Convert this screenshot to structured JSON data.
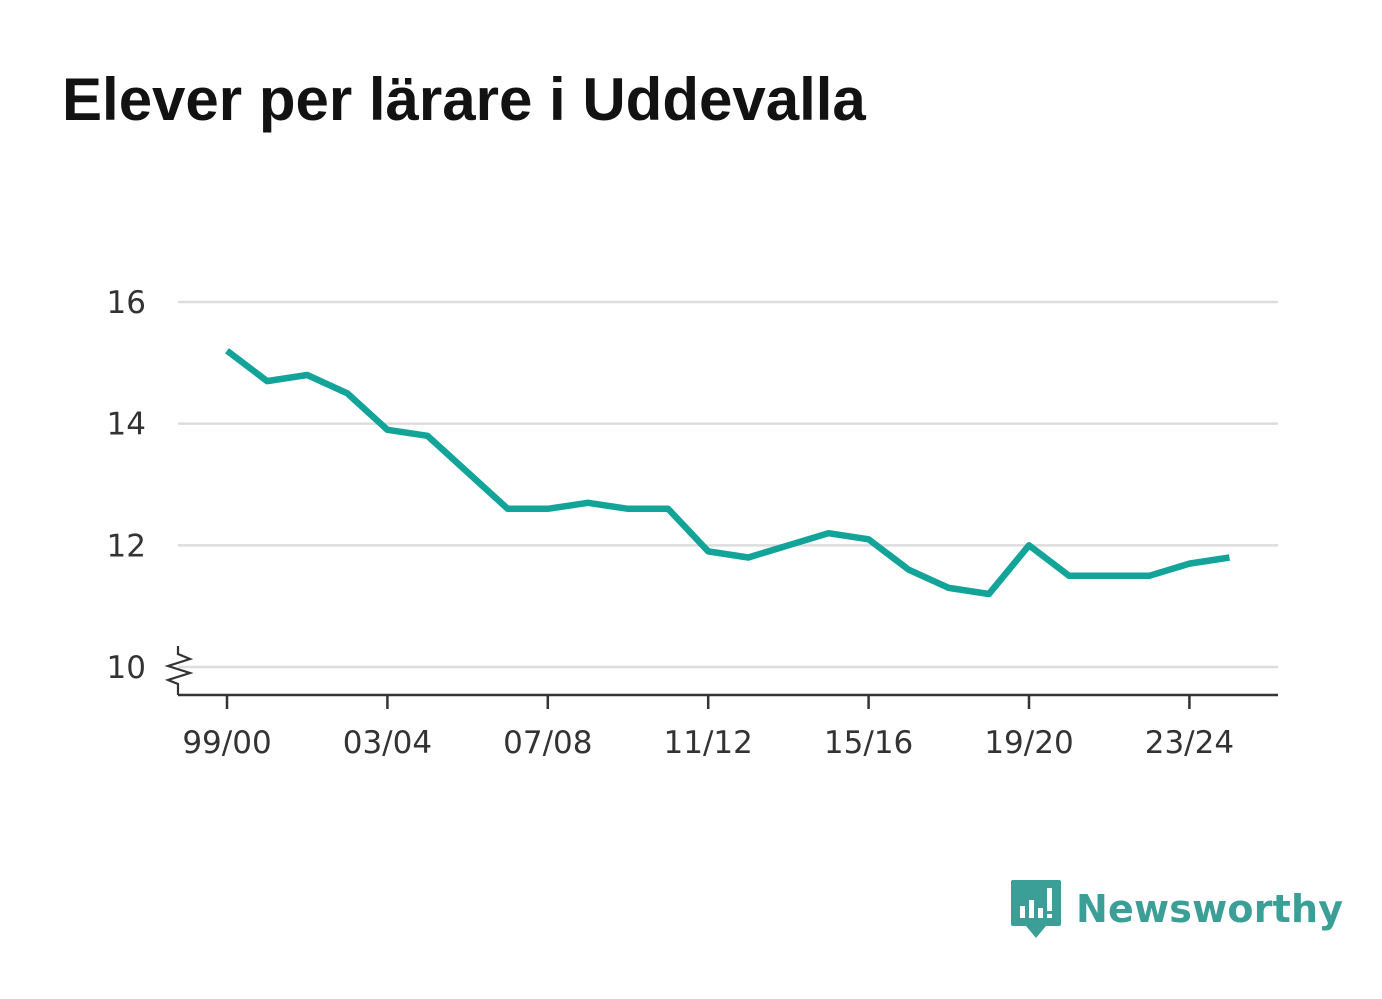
{
  "chart_data": {
    "type": "line",
    "title": "Elever per lärare i Uddevalla",
    "x": [
      "99/00",
      "00/01",
      "01/02",
      "02/03",
      "03/04",
      "04/05",
      "05/06",
      "06/07",
      "07/08",
      "08/09",
      "09/10",
      "10/11",
      "11/12",
      "12/13",
      "13/14",
      "14/15",
      "15/16",
      "16/17",
      "17/18",
      "18/19",
      "19/20",
      "20/21",
      "21/22",
      "22/23",
      "23/24",
      "24/25"
    ],
    "x_tick_labels": [
      "99/00",
      "03/04",
      "07/08",
      "11/12",
      "15/16",
      "19/20",
      "23/24"
    ],
    "series": [
      {
        "values": [
          15.2,
          14.7,
          14.8,
          14.5,
          13.9,
          13.8,
          13.2,
          12.6,
          12.6,
          12.7,
          12.6,
          12.6,
          11.9,
          11.8,
          12.0,
          12.2,
          12.1,
          11.6,
          11.3,
          11.2,
          12.0,
          11.5,
          11.5,
          11.5,
          11.7,
          11.8
        ]
      }
    ],
    "y_ticks": [
      10,
      12,
      14,
      16
    ],
    "ylim": [
      10,
      16
    ],
    "y_axis_break": true,
    "grid": true,
    "line_color": "#12a399",
    "grid_color": "#dddddd",
    "axis_color": "#333333"
  },
  "branding": {
    "name": "Newsworthy",
    "icon": "newsworthy-logo-icon",
    "color": "#3b9e97"
  }
}
